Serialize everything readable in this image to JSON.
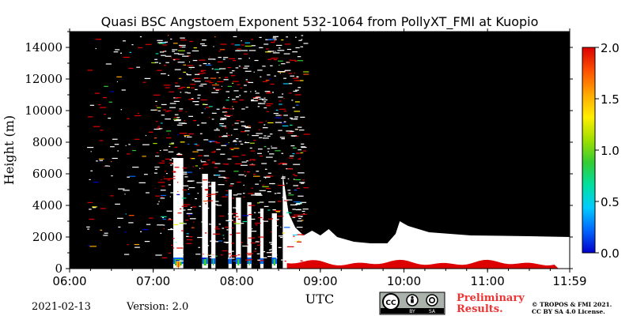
{
  "chart_data": {
    "type": "heatmap",
    "title": "Quasi BSC Angstoem Exponent 532-1064 from PollyXT_FMI at Kuopio",
    "xlabel": "UTC",
    "ylabel": "Height (m)",
    "x_ticks": [
      "06:00",
      "07:00",
      "08:00",
      "09:00",
      "10:00",
      "11:00",
      "11:59"
    ],
    "x_tick_hours": [
      6.0,
      7.0,
      8.0,
      9.0,
      10.0,
      11.0,
      11.983
    ],
    "xlim_hours": [
      6.0,
      11.983
    ],
    "y_ticks": [
      0,
      2000,
      4000,
      6000,
      8000,
      10000,
      12000,
      14000
    ],
    "y_tick_labels": [
      "0",
      "2000",
      "4000",
      "6000",
      "8000",
      "10000",
      "12000",
      "14000"
    ],
    "ylim": [
      0,
      15000
    ],
    "colorbar": {
      "min": 0.0,
      "max": 2.0,
      "ticks": [
        "0.0",
        "0.5",
        "1.0",
        "1.5",
        "2.0"
      ],
      "tick_values": [
        0.0,
        0.5,
        1.0,
        1.5,
        2.0
      ],
      "colors": [
        "#0000cc",
        "#0066ff",
        "#00ccff",
        "#00e0a0",
        "#33cc33",
        "#a0e000",
        "#ffee00",
        "#ffaa00",
        "#ff5500",
        "#dd0000"
      ]
    },
    "background_color": "#000000",
    "low_signal_color": "#ffffff",
    "cloud_top_profile": [
      [
        8.55,
        6000
      ],
      [
        8.62,
        3500
      ],
      [
        8.7,
        2600
      ],
      [
        8.8,
        2100
      ],
      [
        8.9,
        2400
      ],
      [
        9.0,
        2100
      ],
      [
        9.1,
        2500
      ],
      [
        9.2,
        2000
      ],
      [
        9.4,
        1700
      ],
      [
        9.6,
        1600
      ],
      [
        9.8,
        1600
      ],
      [
        9.9,
        2200
      ],
      [
        9.95,
        3000
      ],
      [
        10.05,
        2700
      ],
      [
        10.3,
        2300
      ],
      [
        10.8,
        2100
      ],
      [
        11.5,
        2050
      ],
      [
        11.983,
        2000
      ]
    ],
    "surface_layer": {
      "top_m": 400,
      "value": 1.85
    },
    "dated": "2021-02-13"
  },
  "footer": {
    "date": "2021-02-13",
    "version": "Version: 2.0",
    "license_icons": [
      "CC",
      "BY",
      "SA"
    ],
    "preliminary_line1": "Preliminary",
    "preliminary_line2": "Results.",
    "copyright_line1": "© TROPOS & FMI 2021.",
    "copyright_line2": "CC BY SA 4.0 License."
  }
}
